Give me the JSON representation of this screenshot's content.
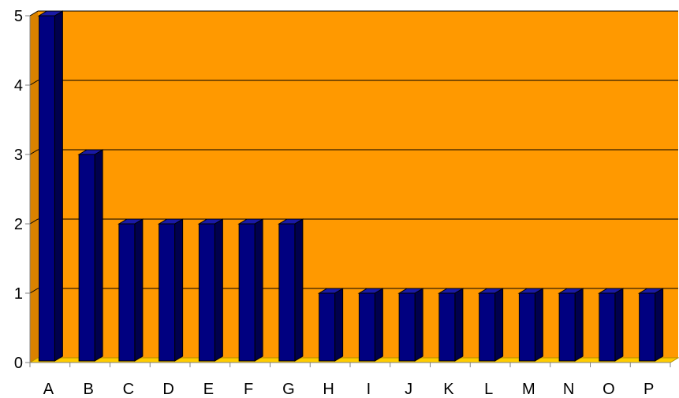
{
  "chart_data": {
    "type": "bar",
    "style": "3d-column",
    "categories": [
      "A",
      "B",
      "C",
      "D",
      "E",
      "F",
      "G",
      "H",
      "I",
      "J",
      "K",
      "L",
      "M",
      "N",
      "O",
      "P"
    ],
    "values": [
      5,
      3,
      2,
      2,
      2,
      2,
      2,
      1,
      1,
      1,
      1,
      1,
      1,
      1,
      1,
      1
    ],
    "ylim": [
      0,
      5
    ],
    "yticks": [
      0,
      1,
      2,
      3,
      4,
      5
    ],
    "grid": true,
    "legend": "none",
    "colors": {
      "plot_background": "#FF9900",
      "back_wall_side": "#D98200",
      "floor": "#FFCC00",
      "floor_edge": "#B38F00",
      "bar_front": "#000080",
      "bar_side": "#00004D",
      "bar_top": "#1A1AA6",
      "gridline": "#000000",
      "axis": "#808080"
    }
  }
}
